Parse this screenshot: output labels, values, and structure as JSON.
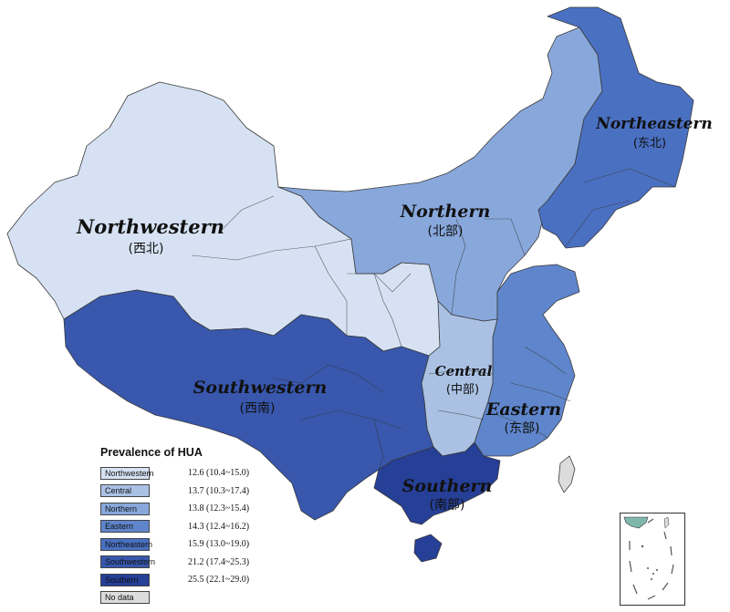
{
  "regions": [
    {
      "key": "northwestern",
      "name": "Northwestern",
      "cn": "(西北)",
      "color": "#d6e2f3"
    },
    {
      "key": "central",
      "name": "Central",
      "cn": "(中部)",
      "color": "#aac1e4"
    },
    {
      "key": "northern",
      "name": "Northern",
      "cn": "(北部)",
      "color": "#88a8dc"
    },
    {
      "key": "eastern",
      "name": "Eastern",
      "cn": "(东部)",
      "color": "#5f86cc"
    },
    {
      "key": "northeastern",
      "name": "Northeastern",
      "cn": "(东北)",
      "color": "#4a70c2"
    },
    {
      "key": "southwestern",
      "name": "Southwestern",
      "cn": "(西南)",
      "color": "#3857ad"
    },
    {
      "key": "southern",
      "name": "Southern",
      "cn": "(南部)",
      "color": "#263f97"
    }
  ],
  "legend": {
    "title": "Prevalence of HUA",
    "items": [
      {
        "label": "Northwestern",
        "value": "12.6 (10.4~15.0)",
        "color": "#d6e2f3"
      },
      {
        "label": "Central",
        "value": "13.7 (10.3~17.4)",
        "color": "#aac1e4"
      },
      {
        "label": "Northern",
        "value": "13.8 (12.3~15.4)",
        "color": "#88a8dc"
      },
      {
        "label": "Eastern",
        "value": "14.3 (12.4~16.2)",
        "color": "#5f86cc"
      },
      {
        "label": "Northeastern",
        "value": "15.9 (13.0~19.0)",
        "color": "#4a70c2"
      },
      {
        "label": "Southwestern",
        "value": "21.2 (17.4~25.3)",
        "color": "#3857ad"
      },
      {
        "label": "Southern",
        "value": "25.5 (22.1~29.0)",
        "color": "#263f97"
      },
      {
        "label": "No data",
        "value": "",
        "color": "#dcdcdc"
      }
    ]
  },
  "no_data_color": "#dcdcdc",
  "inset_color": "#7fb8ab"
}
